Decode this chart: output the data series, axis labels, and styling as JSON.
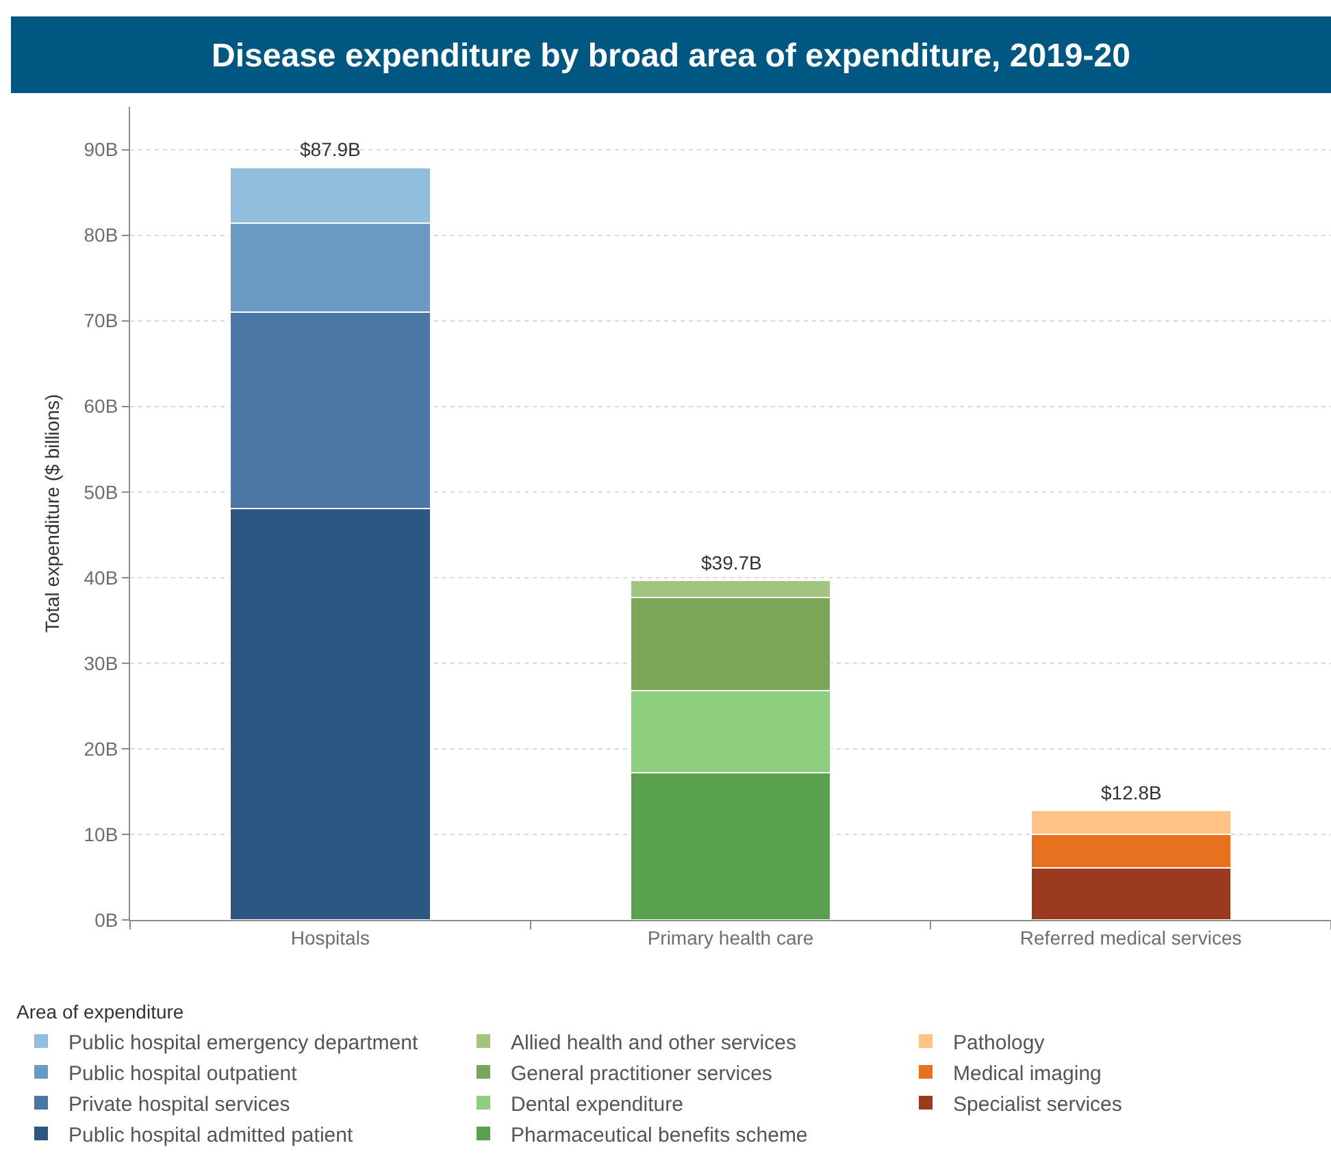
{
  "chart_data": {
    "type": "bar",
    "title": "Disease expenditure by broad area of expenditure, 2019-20",
    "ylabel": "Total expenditure ($ billions)",
    "legend_title": "Area of expenditure",
    "categories": [
      "Hospitals",
      "Primary health care",
      "Referred medical services"
    ],
    "stacked": true,
    "series": [
      {
        "name": "Public hospital admitted patient",
        "color": "#2c5783",
        "values": [
          48.1,
          null,
          null
        ]
      },
      {
        "name": "Private hospital services",
        "color": "#4a77a5",
        "values": [
          22.9,
          null,
          null
        ]
      },
      {
        "name": "Public hospital outpatient",
        "color": "#6a9ac2",
        "values": [
          10.4,
          null,
          null
        ]
      },
      {
        "name": "Public hospital emergency department",
        "color": "#92bedd",
        "values": [
          6.5,
          null,
          null
        ]
      },
      {
        "name": "Pharmaceutical benefits scheme",
        "color": "#59a04f",
        "values": [
          null,
          17.2,
          null
        ]
      },
      {
        "name": "Dental expenditure",
        "color": "#8dcf7e",
        "values": [
          null,
          9.6,
          null
        ]
      },
      {
        "name": "General practitioner services",
        "color": "#7ba557",
        "values": [
          null,
          10.9,
          null
        ]
      },
      {
        "name": "Allied health and other services",
        "color": "#a1c57f",
        "values": [
          null,
          2.0,
          null
        ]
      },
      {
        "name": "Specialist services",
        "color": "#9c3a20",
        "values": [
          null,
          null,
          6.1
        ]
      },
      {
        "name": "Medical imaging",
        "color": "#e8711f",
        "values": [
          null,
          null,
          3.9
        ]
      },
      {
        "name": "Pathology",
        "color": "#fec385",
        "values": [
          null,
          null,
          2.8
        ]
      }
    ],
    "totals": [
      "$87.9B",
      "$39.7B",
      "$12.8B"
    ],
    "ylim": [
      0,
      95
    ],
    "yticks": [
      {
        "value": 0,
        "label": "0B"
      },
      {
        "value": 10,
        "label": "10B"
      },
      {
        "value": 20,
        "label": "20B"
      },
      {
        "value": 30,
        "label": "30B"
      },
      {
        "value": 40,
        "label": "40B"
      },
      {
        "value": 50,
        "label": "50B"
      },
      {
        "value": 60,
        "label": "60B"
      },
      {
        "value": 70,
        "label": "70B"
      },
      {
        "value": 80,
        "label": "80B"
      },
      {
        "value": 90,
        "label": "90B"
      }
    ],
    "grid": "y",
    "legend": "bottom"
  }
}
